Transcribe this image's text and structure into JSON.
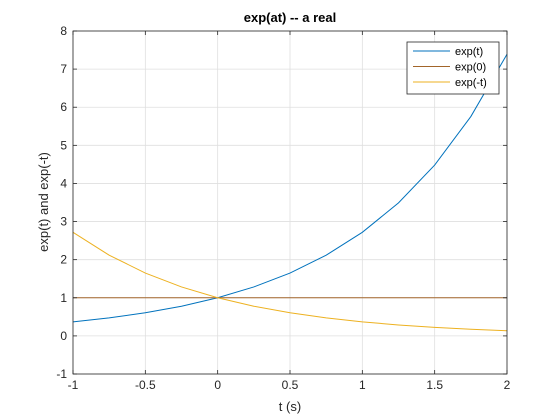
{
  "chart_data": {
    "type": "line",
    "title": "exp(at) -- a real",
    "xlabel": "t (s)",
    "ylabel": "exp(t) and exp(-t)",
    "xlim": [
      -1,
      2
    ],
    "ylim": [
      -1,
      8
    ],
    "xticks": [
      -1,
      -0.5,
      0,
      0.5,
      1,
      1.5,
      2
    ],
    "xtick_labels": [
      "-1",
      "-0.5",
      "0",
      "0.5",
      "1",
      "1.5",
      "2"
    ],
    "yticks": [
      -1,
      0,
      1,
      2,
      3,
      4,
      5,
      6,
      7,
      8
    ],
    "ytick_labels": [
      "-1",
      "0",
      "1",
      "2",
      "3",
      "4",
      "5",
      "6",
      "7",
      "8"
    ],
    "grid": true,
    "legend_position": "top-right",
    "x": [
      -1,
      -0.75,
      -0.5,
      -0.25,
      0,
      0.25,
      0.5,
      0.75,
      1,
      1.25,
      1.5,
      1.75,
      2
    ],
    "series": [
      {
        "name": "exp(t)",
        "color": "#0072BD",
        "values": [
          0.368,
          0.472,
          0.607,
          0.779,
          1.0,
          1.284,
          1.649,
          2.117,
          2.718,
          3.49,
          4.482,
          5.755,
          7.389
        ]
      },
      {
        "name": "exp(0)",
        "color": "#A2652A",
        "values": [
          1,
          1,
          1,
          1,
          1,
          1,
          1,
          1,
          1,
          1,
          1,
          1,
          1
        ]
      },
      {
        "name": "exp(-t)",
        "color": "#EDB120",
        "values": [
          2.718,
          2.117,
          1.649,
          1.284,
          1.0,
          0.779,
          0.607,
          0.472,
          0.368,
          0.287,
          0.223,
          0.174,
          0.135
        ]
      }
    ]
  }
}
